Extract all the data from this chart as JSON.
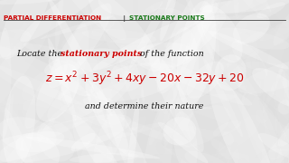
{
  "title_part1": "PARTIAL DIFFERENTIATION",
  "title_sep": " | ",
  "title_part2": "STATIONARY POINTS",
  "title_part1_color": "#cc0000",
  "title_part2_color": "#1a7a1a",
  "title_sep_color": "#222222",
  "body_line1_prefix": "Locate the ",
  "body_line1_highlight": "stationary points",
  "body_line1_suffix": " of the function",
  "body_line1_color": "#111111",
  "body_line1_highlight_color": "#cc0000",
  "equation_color": "#cc0000",
  "body_line3": "and determine their nature",
  "body_line3_color": "#111111",
  "bg_color": "#d8d8d8",
  "fig_width": 3.2,
  "fig_height": 1.8,
  "dpi": 100
}
